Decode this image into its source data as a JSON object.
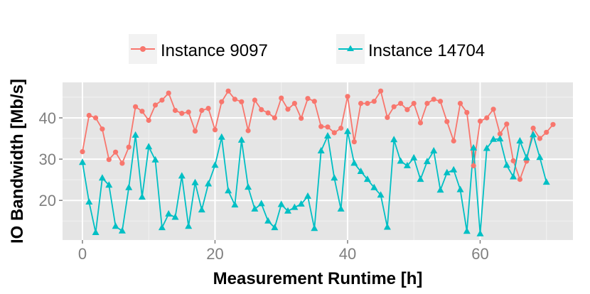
{
  "chart_data": {
    "type": "line",
    "title": "",
    "xlabel": "Measurement Runtime [h]",
    "ylabel": "IO Bandwidth [Mb/s]",
    "xlim": [
      -3,
      74
    ],
    "ylim": [
      10.4,
      48.6
    ],
    "x_ticks": [
      0,
      20,
      40,
      60
    ],
    "x_tick_labels": [
      "0",
      "20",
      "40",
      "60"
    ],
    "y_ticks": [
      20,
      30,
      40
    ],
    "y_tick_labels": [
      "20",
      "30",
      "40"
    ],
    "grid": true,
    "legend_position": "top",
    "series": [
      {
        "name": "Instance 9097",
        "color": "#f8766d",
        "marker": "circle",
        "x": [
          0,
          1,
          2,
          3,
          4,
          5,
          6,
          7,
          8,
          9,
          10,
          11,
          12,
          13,
          14,
          15,
          16,
          17,
          18,
          19,
          20,
          21,
          22,
          23,
          24,
          25,
          26,
          27,
          28,
          29,
          30,
          31,
          32,
          33,
          34,
          35,
          36,
          37,
          38,
          39,
          40,
          41,
          42,
          43,
          44,
          45,
          46,
          47,
          48,
          49,
          50,
          51,
          52,
          53,
          54,
          55,
          56,
          57,
          58,
          59,
          60,
          61,
          62,
          63,
          64,
          65,
          66,
          67,
          68,
          69,
          70,
          71
        ],
        "values": [
          31.8,
          40.6,
          40.0,
          37.3,
          29.9,
          31.7,
          29.0,
          32.9,
          42.7,
          41.6,
          39.4,
          43.1,
          44.3,
          46.0,
          41.8,
          41.1,
          41.4,
          36.8,
          41.8,
          42.3,
          37.1,
          43.9,
          46.5,
          44.5,
          43.9,
          36.9,
          44.3,
          42.0,
          41.2,
          40.0,
          44.8,
          42.1,
          43.5,
          39.9,
          44.7,
          44.0,
          37.9,
          37.8,
          36.4,
          37.5,
          45.2,
          34.2,
          43.5,
          43.5,
          44.0,
          46.5,
          40.1,
          42.7,
          43.5,
          42.0,
          43.5,
          38.8,
          43.5,
          44.5,
          44.0,
          39.1,
          34.4,
          43.5,
          41.3,
          28.4,
          39.2,
          40.0,
          42.1,
          36.1,
          38.5,
          29.6,
          25.1,
          29.5,
          37.5,
          35.0,
          36.5,
          38.4
        ]
      },
      {
        "name": "Instance 14704",
        "color": "#00bfc4",
        "marker": "triangle",
        "x": [
          0,
          1,
          2,
          3,
          4,
          5,
          6,
          7,
          8,
          9,
          10,
          11,
          12,
          13,
          14,
          15,
          16,
          17,
          18,
          19,
          20,
          21,
          22,
          23,
          24,
          25,
          26,
          27,
          28,
          29,
          30,
          31,
          32,
          33,
          34,
          35,
          36,
          37,
          38,
          39,
          40,
          41,
          42,
          43,
          44,
          45,
          46,
          47,
          48,
          49,
          50,
          51,
          52,
          53,
          54,
          55,
          56,
          57,
          58,
          59,
          60,
          61,
          62,
          63,
          64,
          65,
          66,
          67,
          68,
          69,
          70,
          71
        ],
        "values": [
          29.2,
          19.6,
          12.2,
          25.4,
          23.7,
          13.7,
          12.6,
          23.1,
          35.8,
          20.8,
          33.0,
          29.8,
          13.4,
          16.7,
          15.9,
          25.9,
          13.7,
          24.3,
          17.7,
          24.0,
          28.5,
          35.3,
          22.3,
          18.9,
          34.6,
          23.2,
          17.9,
          19.2,
          15.0,
          13.4,
          19.0,
          17.4,
          18.3,
          19.1,
          21.0,
          13.2,
          32.0,
          35.6,
          25.4,
          17.9,
          36.7,
          29.0,
          27.0,
          25.1,
          23.1,
          21.3,
          13.5,
          34.7,
          29.5,
          28.4,
          30.3,
          25.1,
          29.4,
          32.0,
          22.5,
          26.7,
          27.4,
          22.6,
          12.5,
          32.7,
          11.9,
          32.6,
          34.8,
          34.9,
          28.5,
          25.7,
          34.4,
          30.3,
          35.9,
          30.4,
          24.4,
          null
        ]
      }
    ]
  }
}
